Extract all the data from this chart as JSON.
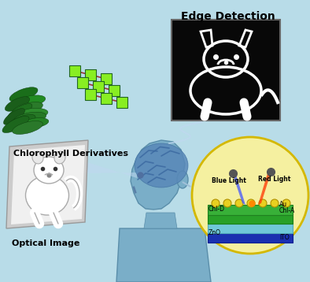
{
  "bg_color": "#b8dce8",
  "title_edge": "Edge Detection",
  "title_chloro": "Chlorophyll Derivatives",
  "title_optical": "Optical Image",
  "layer_labels": [
    "Blue Light",
    "Red Light",
    "Chl-D",
    "Au",
    "Chl-A",
    "ZnO",
    "ITO"
  ],
  "device_circle_color": "#f5f0a0",
  "figsize": [
    3.94,
    3.58
  ],
  "dpi": 100
}
